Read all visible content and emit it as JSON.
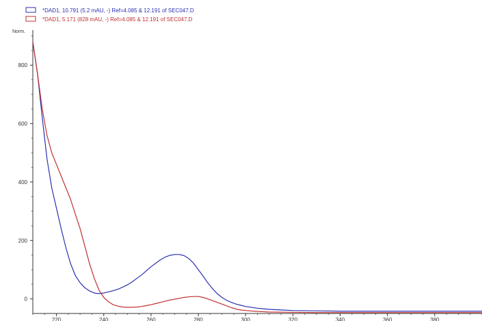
{
  "chart_data": {
    "type": "line",
    "ylabel": "Norm.",
    "xlim": [
      210,
      400
    ],
    "ylim": [
      -50,
      920
    ],
    "x_ticks": [
      220,
      240,
      260,
      280,
      300,
      320,
      340,
      360,
      380
    ],
    "y_ticks": [
      0,
      200,
      400,
      600,
      800
    ],
    "grid": false,
    "legend_position": "top-left",
    "series": [
      {
        "name": "*DAD1, 10.791 (5.2 mAU, -) Ref=4.085 & 12.191 of SEC047.D",
        "color": "#2b2fb0",
        "points": [
          [
            210,
            880
          ],
          [
            212,
            770
          ],
          [
            214,
            620
          ],
          [
            216,
            480
          ],
          [
            218,
            380
          ],
          [
            220,
            310
          ],
          [
            222,
            240
          ],
          [
            224,
            175
          ],
          [
            226,
            120
          ],
          [
            228,
            80
          ],
          [
            230,
            55
          ],
          [
            232,
            38
          ],
          [
            234,
            27
          ],
          [
            236,
            20
          ],
          [
            238,
            18
          ],
          [
            240,
            20
          ],
          [
            242,
            24
          ],
          [
            244,
            28
          ],
          [
            246,
            33
          ],
          [
            248,
            40
          ],
          [
            250,
            48
          ],
          [
            252,
            58
          ],
          [
            254,
            70
          ],
          [
            256,
            82
          ],
          [
            258,
            96
          ],
          [
            260,
            110
          ],
          [
            262,
            122
          ],
          [
            264,
            134
          ],
          [
            266,
            143
          ],
          [
            268,
            149
          ],
          [
            270,
            152
          ],
          [
            272,
            152
          ],
          [
            274,
            148
          ],
          [
            276,
            138
          ],
          [
            278,
            122
          ],
          [
            280,
            100
          ],
          [
            282,
            78
          ],
          [
            284,
            55
          ],
          [
            286,
            35
          ],
          [
            288,
            18
          ],
          [
            290,
            5
          ],
          [
            292,
            -5
          ],
          [
            294,
            -12
          ],
          [
            296,
            -18
          ],
          [
            298,
            -22
          ],
          [
            300,
            -26
          ],
          [
            305,
            -32
          ],
          [
            310,
            -36
          ],
          [
            315,
            -38
          ],
          [
            320,
            -40
          ],
          [
            330,
            -41
          ],
          [
            340,
            -42
          ],
          [
            350,
            -42
          ],
          [
            360,
            -42
          ],
          [
            370,
            -42
          ],
          [
            380,
            -42
          ],
          [
            390,
            -42
          ],
          [
            400,
            -42
          ]
        ]
      },
      {
        "name": "*DAD1, 5.171 (828 mAU, -) Ref=4.085 & 12.191 of SEC047.D",
        "color": "#c03030",
        "points": [
          [
            210,
            880
          ],
          [
            212,
            770
          ],
          [
            214,
            650
          ],
          [
            216,
            560
          ],
          [
            218,
            500
          ],
          [
            220,
            460
          ],
          [
            222,
            420
          ],
          [
            224,
            380
          ],
          [
            226,
            340
          ],
          [
            228,
            290
          ],
          [
            230,
            240
          ],
          [
            232,
            180
          ],
          [
            234,
            120
          ],
          [
            236,
            70
          ],
          [
            238,
            30
          ],
          [
            240,
            5
          ],
          [
            242,
            -10
          ],
          [
            244,
            -20
          ],
          [
            246,
            -25
          ],
          [
            248,
            -28
          ],
          [
            250,
            -29
          ],
          [
            252,
            -29
          ],
          [
            254,
            -28
          ],
          [
            256,
            -26
          ],
          [
            258,
            -23
          ],
          [
            260,
            -20
          ],
          [
            262,
            -16
          ],
          [
            264,
            -12
          ],
          [
            266,
            -8
          ],
          [
            268,
            -4
          ],
          [
            270,
            -1
          ],
          [
            272,
            2
          ],
          [
            274,
            5
          ],
          [
            276,
            7
          ],
          [
            278,
            8
          ],
          [
            280,
            8
          ],
          [
            282,
            5
          ],
          [
            284,
            0
          ],
          [
            286,
            -6
          ],
          [
            288,
            -12
          ],
          [
            290,
            -18
          ],
          [
            292,
            -24
          ],
          [
            294,
            -30
          ],
          [
            296,
            -35
          ],
          [
            298,
            -38
          ],
          [
            300,
            -40
          ],
          [
            305,
            -43
          ],
          [
            310,
            -45
          ],
          [
            320,
            -46
          ],
          [
            330,
            -47
          ],
          [
            340,
            -47
          ],
          [
            350,
            -47
          ],
          [
            360,
            -47
          ],
          [
            370,
            -47
          ],
          [
            380,
            -47
          ],
          [
            390,
            -47
          ],
          [
            400,
            -47
          ]
        ]
      }
    ]
  }
}
